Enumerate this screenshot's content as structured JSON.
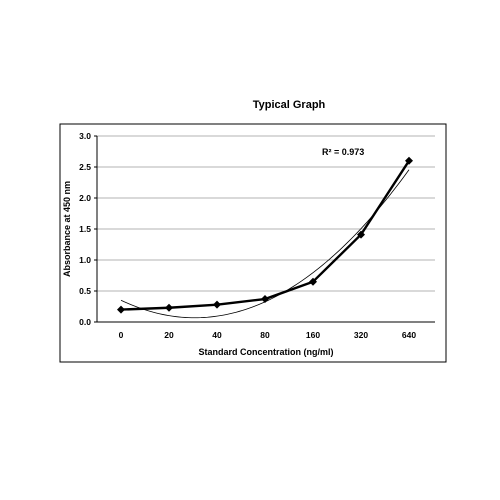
{
  "chart_data": {
    "type": "line",
    "title": "Typical Graph",
    "xlabel": "Standard  Concentration  (ng/ml)",
    "ylabel": "Absorbance at 450 nm",
    "categories": [
      "0",
      "20",
      "40",
      "80",
      "160",
      "320",
      "640"
    ],
    "series": [
      {
        "values": [
          0.2,
          0.23,
          0.28,
          0.37,
          0.65,
          1.41,
          2.6
        ],
        "marker": "diamond",
        "color": "#000000"
      }
    ],
    "trendline": {
      "type": "polynomial",
      "order": 2,
      "values": [
        0.33,
        0.14,
        0.1,
        0.3,
        0.78,
        1.53,
        2.45
      ],
      "r_squared_label": "R² = 0.973",
      "color": "#000000"
    },
    "ylim": [
      0,
      3
    ],
    "yticks": [
      "0.0",
      "0.5",
      "1.0",
      "1.5",
      "2.0",
      "2.5",
      "3.0"
    ],
    "grid": "horizontal",
    "legend": "none"
  }
}
